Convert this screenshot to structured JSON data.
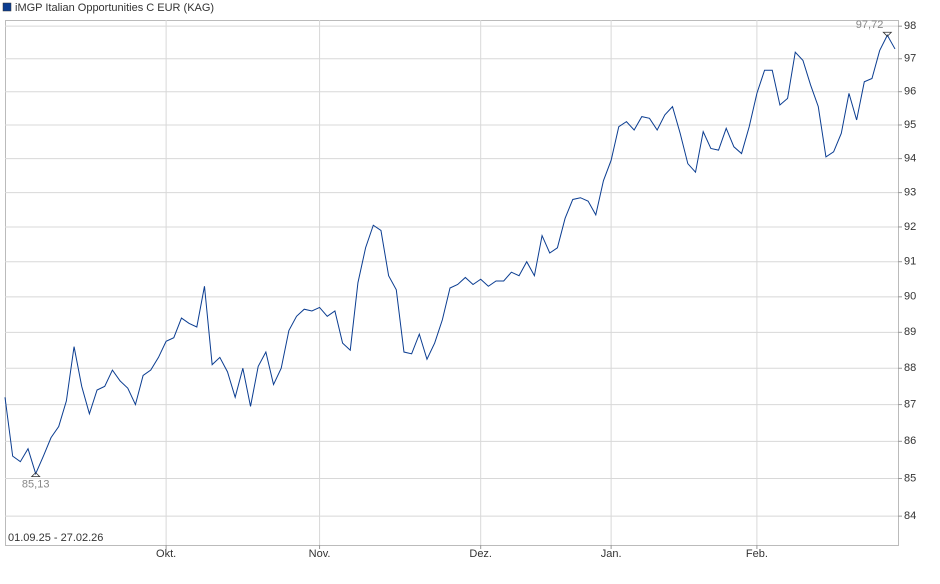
{
  "chart_data": {
    "type": "line",
    "title": "iMGP Italian Opportunities C EUR (KAG)",
    "date_range": "01.09.25 - 27.02.26",
    "log_scale": true,
    "grid": true,
    "categories": [
      null,
      null,
      null,
      null,
      null,
      null,
      null,
      null,
      null,
      null,
      null,
      null,
      null,
      null,
      null,
      null,
      null,
      null,
      null,
      null,
      null,
      "Okt.",
      null,
      null,
      null,
      null,
      null,
      null,
      null,
      null,
      null,
      null,
      null,
      null,
      null,
      null,
      null,
      null,
      null,
      null,
      null,
      "Nov.",
      null,
      null,
      null,
      null,
      null,
      null,
      null,
      null,
      null,
      null,
      null,
      null,
      null,
      null,
      null,
      null,
      null,
      null,
      null,
      null,
      "Dez.",
      null,
      null,
      null,
      null,
      null,
      null,
      null,
      null,
      null,
      null,
      null,
      null,
      null,
      null,
      null,
      null,
      "Jan.",
      null,
      null,
      null,
      null,
      null,
      null,
      null,
      null,
      null,
      null,
      null,
      null,
      null,
      null,
      null,
      null,
      null,
      null,
      "Feb.",
      null,
      null,
      null,
      null,
      null,
      null,
      null,
      null,
      null,
      null,
      null,
      null,
      null,
      null,
      null,
      null,
      null,
      null
    ],
    "series": [
      {
        "name": "iMGP Italian Opportunities C EUR (KAG)",
        "color": "#0b3d91",
        "values": [
          87.2,
          85.6,
          85.45,
          85.8,
          85.13,
          85.6,
          86.1,
          86.4,
          87.1,
          88.6,
          87.5,
          86.75,
          87.4,
          87.5,
          87.95,
          87.65,
          87.45,
          87.0,
          87.8,
          87.95,
          88.3,
          88.75,
          88.85,
          89.4,
          89.25,
          89.15,
          90.3,
          88.1,
          88.3,
          87.9,
          87.2,
          88.0,
          86.95,
          88.05,
          88.45,
          87.55,
          88.0,
          89.05,
          89.45,
          89.65,
          89.6,
          89.7,
          89.45,
          89.6,
          88.7,
          88.5,
          90.4,
          91.4,
          92.05,
          91.9,
          90.6,
          90.2,
          88.45,
          88.4,
          88.95,
          88.25,
          88.7,
          89.35,
          90.25,
          90.35,
          90.55,
          90.35,
          90.5,
          90.3,
          90.45,
          90.45,
          90.7,
          90.6,
          91.0,
          90.6,
          91.75,
          91.25,
          91.4,
          92.25,
          92.8,
          92.85,
          92.75,
          92.35,
          93.35,
          93.95,
          94.95,
          95.1,
          94.85,
          95.25,
          95.2,
          94.85,
          95.3,
          95.55,
          94.75,
          93.85,
          93.6,
          94.8,
          94.3,
          94.25,
          94.9,
          94.35,
          94.15,
          94.95,
          95.95,
          96.65,
          96.65,
          95.6,
          95.8,
          97.2,
          96.95,
          96.2,
          95.55,
          94.05,
          94.2,
          94.75,
          95.95,
          95.15,
          96.3,
          96.4,
          97.25,
          97.72,
          97.3
        ]
      }
    ],
    "min_label": {
      "value": 85.13,
      "label": "85,13"
    },
    "max_label": {
      "value": 97.72,
      "label": "97,72"
    },
    "ylim": [
      83.24,
      98.19
    ],
    "yticks": [
      84,
      85,
      86,
      87,
      88,
      89,
      90,
      91,
      92,
      93,
      94,
      95,
      96,
      97,
      98
    ]
  }
}
